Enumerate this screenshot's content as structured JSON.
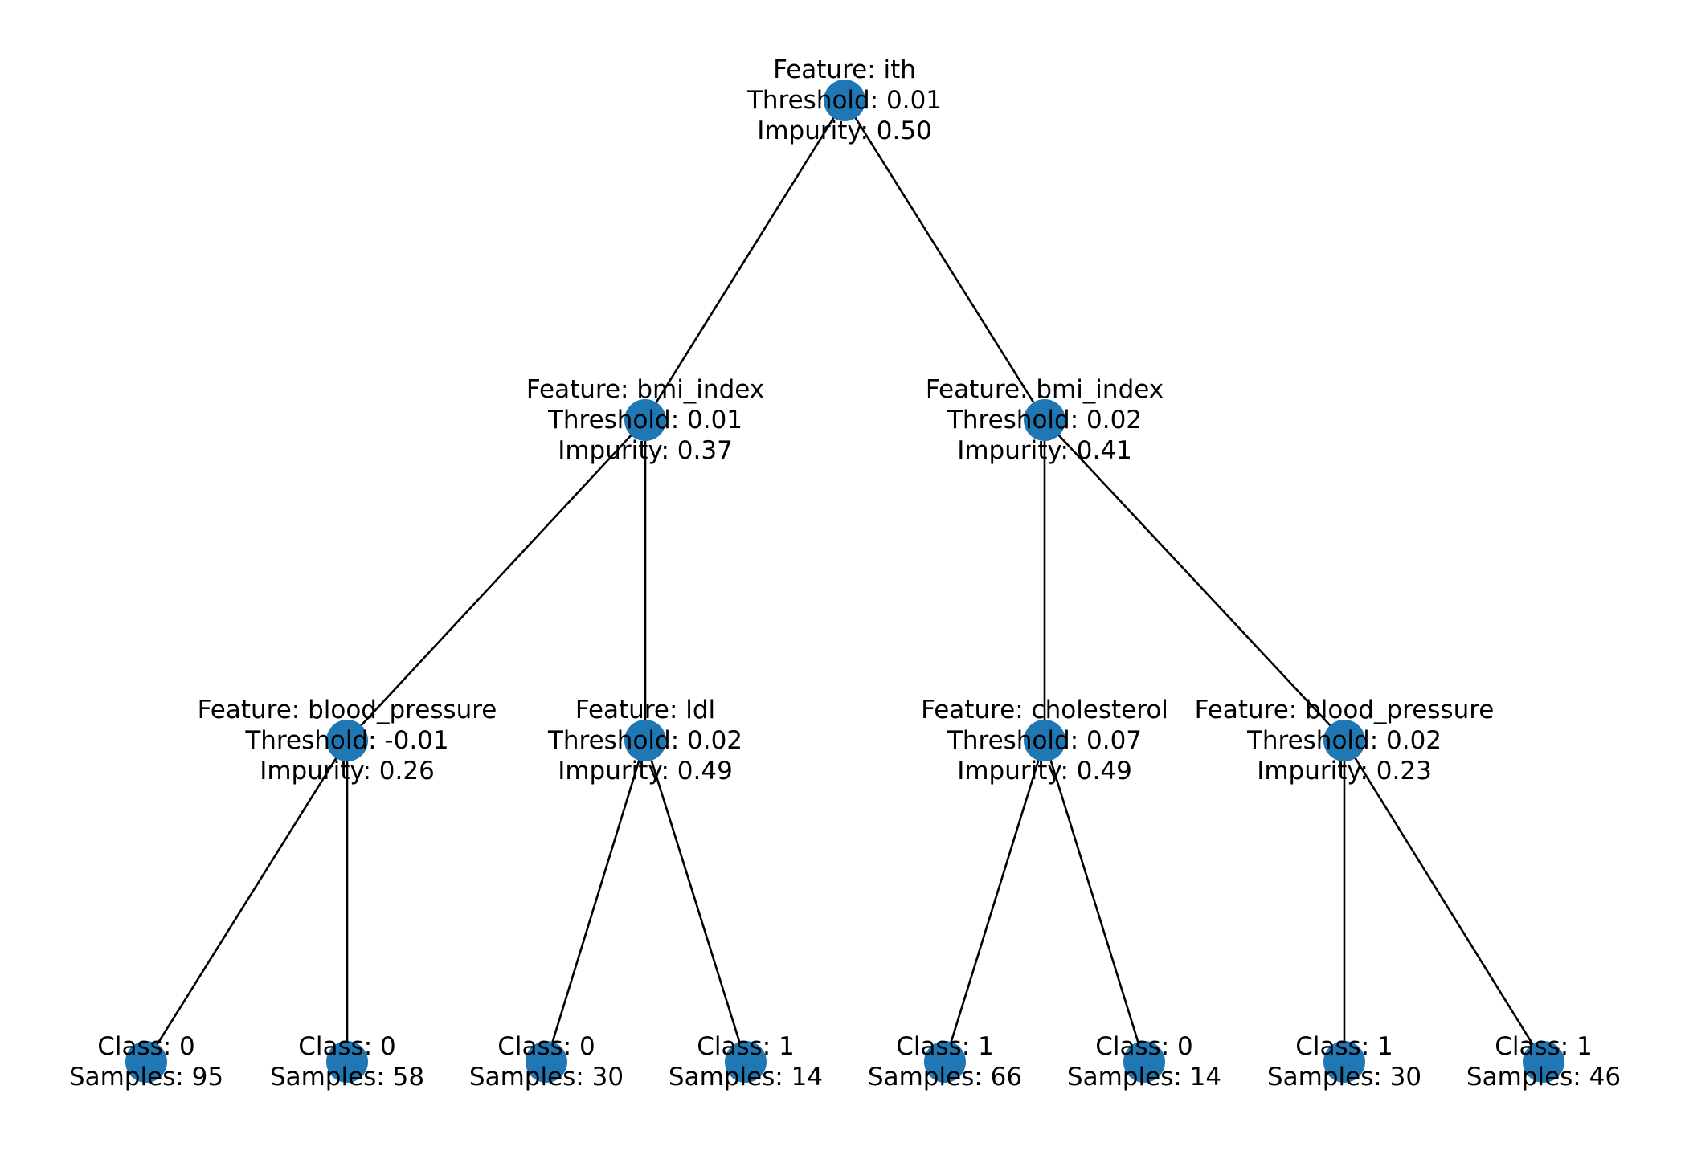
{
  "tree": {
    "node_color": "#1f77b4",
    "edge_color": "#000000",
    "nodes": [
      {
        "id": "n0",
        "lines": [
          "Feature: ith",
          "Threshold: 0.01",
          "Impurity: 0.50"
        ]
      },
      {
        "id": "n1",
        "lines": [
          "Feature: bmi_index",
          "Threshold: 0.01",
          "Impurity: 0.37"
        ]
      },
      {
        "id": "n2",
        "lines": [
          "Feature: bmi_index",
          "Threshold: 0.02",
          "Impurity: 0.41"
        ]
      },
      {
        "id": "n3",
        "lines": [
          "Feature: blood_pressure",
          "Threshold: -0.01",
          "Impurity: 0.26"
        ]
      },
      {
        "id": "n4",
        "lines": [
          "Feature: ldl",
          "Threshold: 0.02",
          "Impurity: 0.49"
        ]
      },
      {
        "id": "n5",
        "lines": [
          "Feature: cholesterol",
          "Threshold: 0.07",
          "Impurity: 0.49"
        ]
      },
      {
        "id": "n6",
        "lines": [
          "Feature: blood_pressure",
          "Threshold: 0.02",
          "Impurity: 0.23"
        ]
      },
      {
        "id": "n7",
        "lines": [
          "Class: 0",
          "Samples: 95"
        ]
      },
      {
        "id": "n8",
        "lines": [
          "Class: 0",
          "Samples: 58"
        ]
      },
      {
        "id": "n9",
        "lines": [
          "Class: 0",
          "Samples: 30"
        ]
      },
      {
        "id": "n10",
        "lines": [
          "Class: 1",
          "Samples: 14"
        ]
      },
      {
        "id": "n11",
        "lines": [
          "Class: 1",
          "Samples: 66"
        ]
      },
      {
        "id": "n12",
        "lines": [
          "Class: 0",
          "Samples: 14"
        ]
      },
      {
        "id": "n13",
        "lines": [
          "Class: 1",
          "Samples: 30"
        ]
      },
      {
        "id": "n14",
        "lines": [
          "Class: 1",
          "Samples: 46"
        ]
      }
    ],
    "edges": [
      [
        "n0",
        "n1"
      ],
      [
        "n0",
        "n2"
      ],
      [
        "n1",
        "n3"
      ],
      [
        "n1",
        "n4"
      ],
      [
        "n2",
        "n5"
      ],
      [
        "n2",
        "n6"
      ],
      [
        "n3",
        "n7"
      ],
      [
        "n3",
        "n8"
      ],
      [
        "n4",
        "n9"
      ],
      [
        "n4",
        "n10"
      ],
      [
        "n5",
        "n11"
      ],
      [
        "n5",
        "n12"
      ],
      [
        "n6",
        "n13"
      ],
      [
        "n6",
        "n14"
      ]
    ]
  }
}
